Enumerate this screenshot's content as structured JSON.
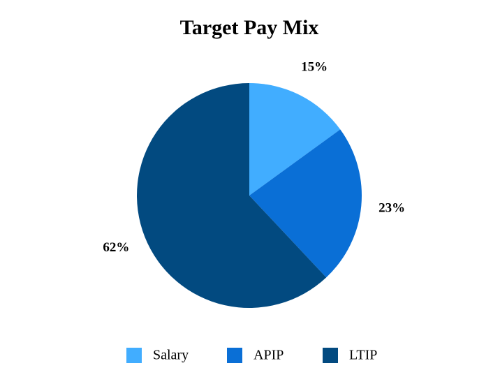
{
  "chart_data": {
    "type": "pie",
    "title": "Target Pay Mix",
    "categories": [
      "Salary",
      "APIP",
      "LTIP"
    ],
    "values": [
      15,
      23,
      62
    ],
    "value_labels": [
      "15%",
      "23%",
      "62%"
    ],
    "colors": [
      "#41adff",
      "#0a6fd6",
      "#024a80"
    ],
    "legend": "bottom"
  }
}
